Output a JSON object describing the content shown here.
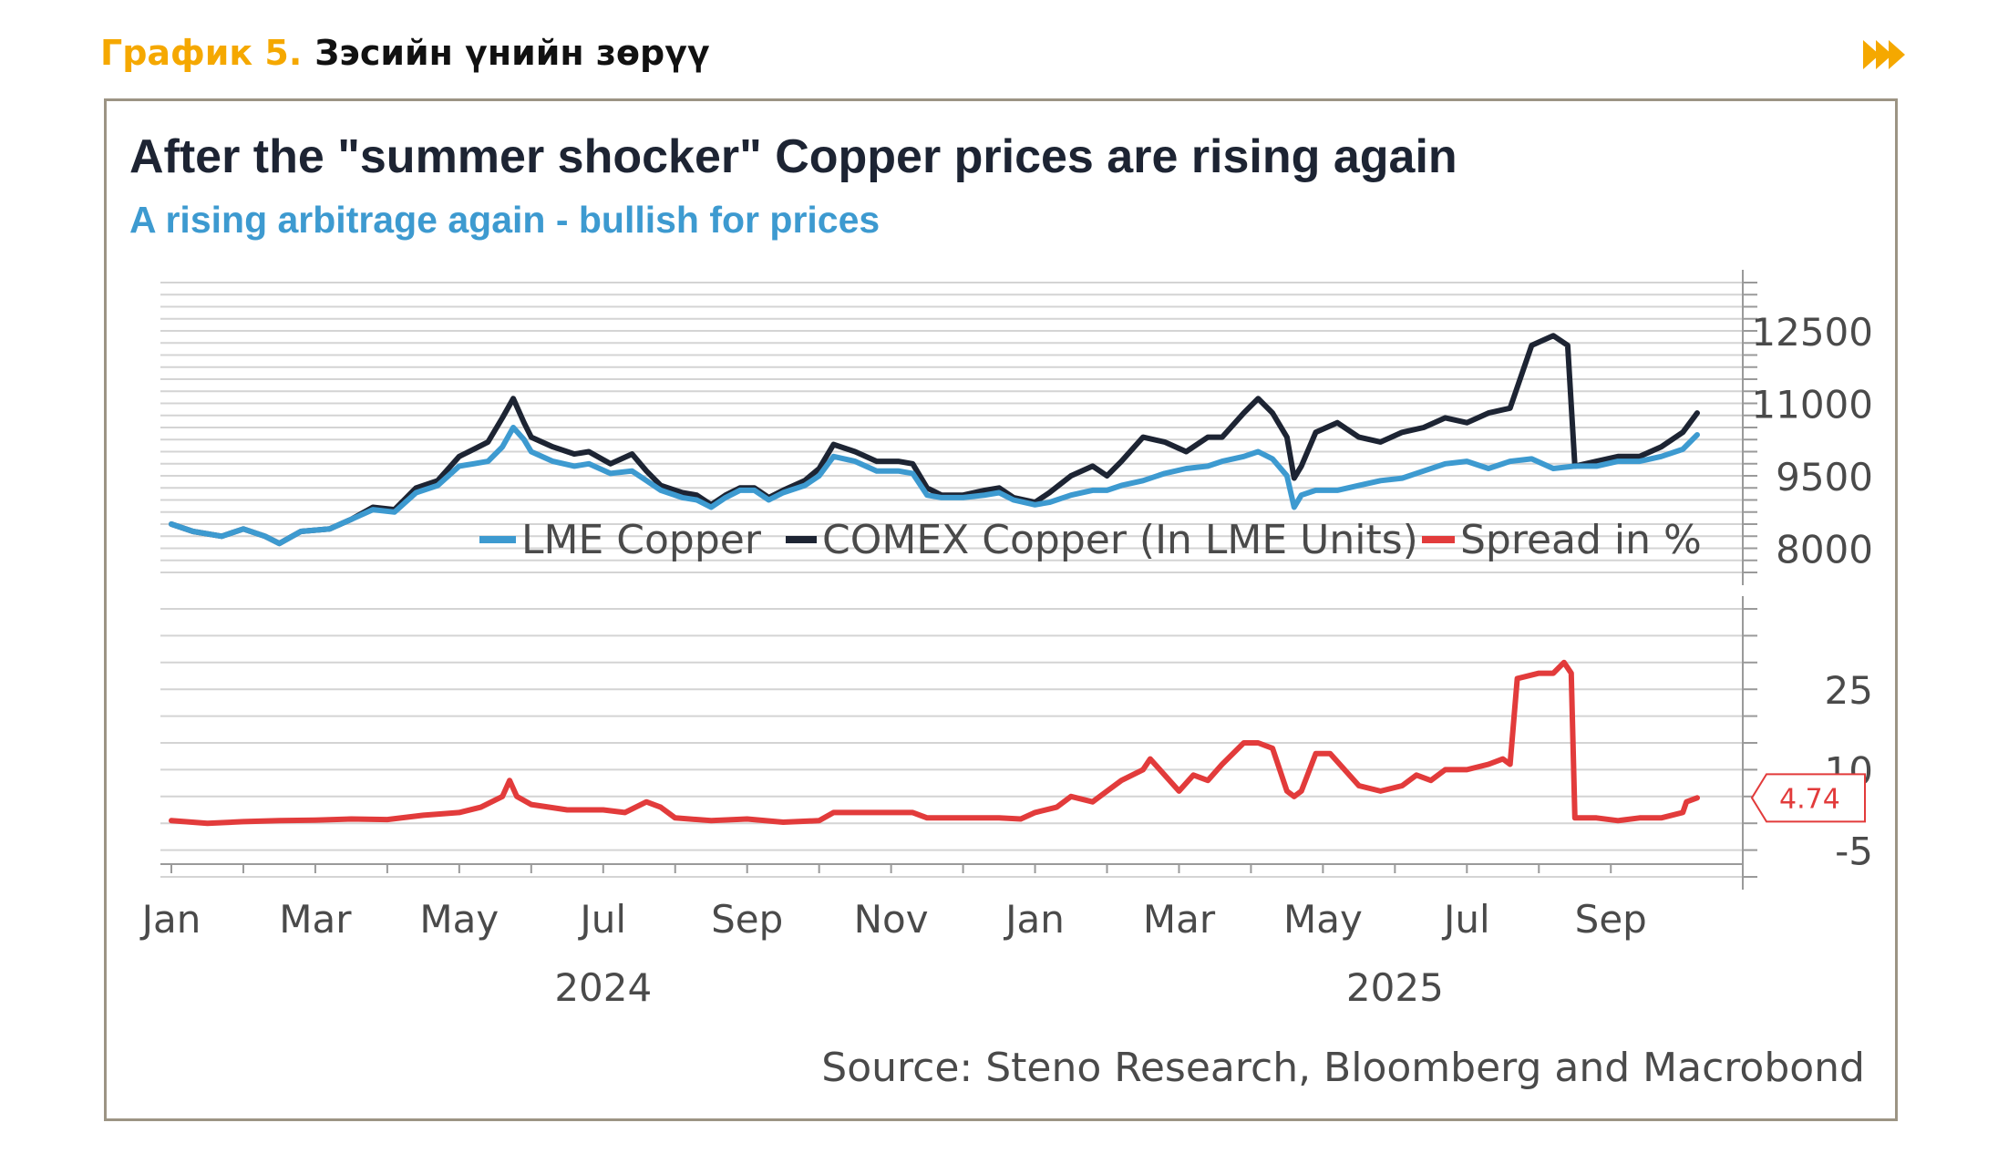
{
  "header": {
    "number": "График 5.",
    "title": "Зэсийн үнийн зөрүү"
  },
  "colors": {
    "accent": "#f5a800",
    "lme": "#3d9ad0",
    "comex": "#1d2433",
    "spread": "#e23b3b",
    "frame": "#9c9484"
  },
  "chart_data": {
    "type": "line",
    "title": "After the \"summer shocker\" Copper prices are rising again",
    "subtitle": "A rising arbitrage again - bullish for prices",
    "source": "Source: Steno Research, Bloomberg and Macrobond",
    "x_labels": [
      "Jan",
      "Mar",
      "May",
      "Jul",
      "Sep",
      "Nov",
      "Jan",
      "Mar",
      "May",
      "Jul",
      "Sep"
    ],
    "x_label_positions": [
      0,
      2,
      4,
      6,
      8,
      10,
      12,
      14,
      16,
      18,
      20
    ],
    "years": [
      {
        "label": "2024",
        "pos": 6
      },
      {
        "label": "2025",
        "pos": 17
      }
    ],
    "x_range": [
      0,
      21.2
    ],
    "top_panel": {
      "yticks": [
        "12500",
        "11000",
        "9500",
        "8000"
      ],
      "ytick_values": [
        12500,
        11000,
        9500,
        8000
      ],
      "ylim": [
        7500,
        13500
      ],
      "legend": [
        "LME Copper",
        "COMEX Copper (In LME Units)",
        "Spread in %"
      ],
      "series": [
        {
          "name": "LME Copper",
          "color": "#3d9ad0",
          "points": [
            [
              0,
              8500
            ],
            [
              0.3,
              8350
            ],
            [
              0.7,
              8250
            ],
            [
              1.0,
              8400
            ],
            [
              1.3,
              8250
            ],
            [
              1.5,
              8100
            ],
            [
              1.8,
              8350
            ],
            [
              2.2,
              8400
            ],
            [
              2.5,
              8600
            ],
            [
              2.8,
              8800
            ],
            [
              3.1,
              8750
            ],
            [
              3.4,
              9150
            ],
            [
              3.7,
              9300
            ],
            [
              4.0,
              9700
            ],
            [
              4.2,
              9750
            ],
            [
              4.4,
              9800
            ],
            [
              4.6,
              10100
            ],
            [
              4.75,
              10500
            ],
            [
              4.9,
              10250
            ],
            [
              5.0,
              10000
            ],
            [
              5.3,
              9800
            ],
            [
              5.6,
              9700
            ],
            [
              5.8,
              9750
            ],
            [
              6.1,
              9550
            ],
            [
              6.4,
              9600
            ],
            [
              6.6,
              9400
            ],
            [
              6.8,
              9200
            ],
            [
              7.1,
              9050
            ],
            [
              7.3,
              9000
            ],
            [
              7.5,
              8850
            ],
            [
              7.7,
              9050
            ],
            [
              7.9,
              9200
            ],
            [
              8.1,
              9200
            ],
            [
              8.3,
              9000
            ],
            [
              8.5,
              9150
            ],
            [
              8.8,
              9300
            ],
            [
              9.0,
              9500
            ],
            [
              9.2,
              9900
            ],
            [
              9.5,
              9800
            ],
            [
              9.8,
              9600
            ],
            [
              10.1,
              9600
            ],
            [
              10.3,
              9550
            ],
            [
              10.5,
              9100
            ],
            [
              10.7,
              9050
            ],
            [
              11.0,
              9050
            ],
            [
              11.3,
              9100
            ],
            [
              11.5,
              9150
            ],
            [
              11.7,
              9000
            ],
            [
              12.0,
              8900
            ],
            [
              12.2,
              8950
            ],
            [
              12.5,
              9100
            ],
            [
              12.8,
              9200
            ],
            [
              13.0,
              9200
            ],
            [
              13.2,
              9300
            ],
            [
              13.5,
              9400
            ],
            [
              13.8,
              9550
            ],
            [
              14.1,
              9650
            ],
            [
              14.4,
              9700
            ],
            [
              14.6,
              9800
            ],
            [
              14.9,
              9900
            ],
            [
              15.1,
              10000
            ],
            [
              15.3,
              9850
            ],
            [
              15.5,
              9500
            ],
            [
              15.6,
              8850
            ],
            [
              15.7,
              9100
            ],
            [
              15.9,
              9200
            ],
            [
              16.2,
              9200
            ],
            [
              16.5,
              9300
            ],
            [
              16.8,
              9400
            ],
            [
              17.1,
              9450
            ],
            [
              17.4,
              9600
            ],
            [
              17.7,
              9750
            ],
            [
              18.0,
              9800
            ],
            [
              18.3,
              9650
            ],
            [
              18.6,
              9800
            ],
            [
              18.9,
              9850
            ],
            [
              19.2,
              9650
            ],
            [
              19.5,
              9700
            ],
            [
              19.8,
              9700
            ],
            [
              20.1,
              9800
            ],
            [
              20.4,
              9800
            ],
            [
              20.7,
              9900
            ],
            [
              21.0,
              10050
            ],
            [
              21.2,
              10350
            ]
          ]
        },
        {
          "name": "COMEX Copper (In LME Units)",
          "color": "#1d2433",
          "points": [
            [
              0,
              8500
            ],
            [
              0.3,
              8350
            ],
            [
              0.7,
              8250
            ],
            [
              1.0,
              8400
            ],
            [
              1.3,
              8250
            ],
            [
              1.5,
              8100
            ],
            [
              1.8,
              8350
            ],
            [
              2.2,
              8400
            ],
            [
              2.5,
              8600
            ],
            [
              2.8,
              8850
            ],
            [
              3.1,
              8800
            ],
            [
              3.4,
              9250
            ],
            [
              3.7,
              9400
            ],
            [
              4.0,
              9900
            ],
            [
              4.2,
              10050
            ],
            [
              4.4,
              10200
            ],
            [
              4.6,
              10700
            ],
            [
              4.75,
              11100
            ],
            [
              4.9,
              10600
            ],
            [
              5.0,
              10300
            ],
            [
              5.3,
              10100
            ],
            [
              5.6,
              9950
            ],
            [
              5.8,
              10000
            ],
            [
              6.1,
              9750
            ],
            [
              6.4,
              9950
            ],
            [
              6.6,
              9600
            ],
            [
              6.8,
              9300
            ],
            [
              7.1,
              9150
            ],
            [
              7.3,
              9100
            ],
            [
              7.5,
              8900
            ],
            [
              7.7,
              9100
            ],
            [
              7.9,
              9250
            ],
            [
              8.1,
              9250
            ],
            [
              8.3,
              9050
            ],
            [
              8.5,
              9200
            ],
            [
              8.8,
              9400
            ],
            [
              9.0,
              9650
            ],
            [
              9.2,
              10150
            ],
            [
              9.5,
              10000
            ],
            [
              9.8,
              9800
            ],
            [
              10.1,
              9800
            ],
            [
              10.3,
              9750
            ],
            [
              10.5,
              9250
            ],
            [
              10.7,
              9100
            ],
            [
              11.0,
              9100
            ],
            [
              11.3,
              9200
            ],
            [
              11.5,
              9250
            ],
            [
              11.7,
              9050
            ],
            [
              12.0,
              8950
            ],
            [
              12.2,
              9150
            ],
            [
              12.5,
              9500
            ],
            [
              12.8,
              9700
            ],
            [
              13.0,
              9500
            ],
            [
              13.2,
              9800
            ],
            [
              13.5,
              10300
            ],
            [
              13.8,
              10200
            ],
            [
              14.1,
              10000
            ],
            [
              14.4,
              10300
            ],
            [
              14.6,
              10300
            ],
            [
              14.9,
              10800
            ],
            [
              15.1,
              11100
            ],
            [
              15.3,
              10800
            ],
            [
              15.5,
              10300
            ],
            [
              15.6,
              9450
            ],
            [
              15.7,
              9700
            ],
            [
              15.9,
              10400
            ],
            [
              16.2,
              10600
            ],
            [
              16.5,
              10300
            ],
            [
              16.8,
              10200
            ],
            [
              17.1,
              10400
            ],
            [
              17.4,
              10500
            ],
            [
              17.7,
              10700
            ],
            [
              18.0,
              10600
            ],
            [
              18.3,
              10800
            ],
            [
              18.6,
              10900
            ],
            [
              18.9,
              12200
            ],
            [
              19.2,
              12400
            ],
            [
              19.4,
              12200
            ],
            [
              19.5,
              9700
            ],
            [
              19.8,
              9800
            ],
            [
              20.1,
              9900
            ],
            [
              20.4,
              9900
            ],
            [
              20.7,
              10100
            ],
            [
              21.0,
              10400
            ],
            [
              21.2,
              10800
            ]
          ]
        }
      ]
    },
    "bottom_panel": {
      "yticks": [
        "25",
        "10",
        "-5"
      ],
      "ytick_values": [
        25,
        10,
        -5
      ],
      "ylim": [
        -10,
        40
      ],
      "last_value_label": "4.74",
      "series": [
        {
          "name": "Spread in %",
          "color": "#e23b3b",
          "points": [
            [
              0,
              0.5
            ],
            [
              0.5,
              0
            ],
            [
              1.0,
              0.3
            ],
            [
              1.5,
              0.5
            ],
            [
              2.0,
              0.6
            ],
            [
              2.5,
              0.8
            ],
            [
              3.0,
              0.7
            ],
            [
              3.5,
              1.5
            ],
            [
              4.0,
              2.0
            ],
            [
              4.3,
              3.0
            ],
            [
              4.6,
              5.0
            ],
            [
              4.7,
              8.0
            ],
            [
              4.8,
              5.0
            ],
            [
              5.0,
              3.5
            ],
            [
              5.5,
              2.5
            ],
            [
              6.0,
              2.5
            ],
            [
              6.3,
              2.0
            ],
            [
              6.6,
              4.0
            ],
            [
              6.8,
              3.0
            ],
            [
              7.0,
              1.0
            ],
            [
              7.5,
              0.5
            ],
            [
              8.0,
              0.8
            ],
            [
              8.5,
              0.2
            ],
            [
              9.0,
              0.5
            ],
            [
              9.2,
              2.0
            ],
            [
              9.5,
              2.0
            ],
            [
              10.0,
              2.0
            ],
            [
              10.3,
              2.0
            ],
            [
              10.5,
              1.0
            ],
            [
              11.0,
              1.0
            ],
            [
              11.5,
              1.0
            ],
            [
              11.8,
              0.8
            ],
            [
              12.0,
              2.0
            ],
            [
              12.3,
              3.0
            ],
            [
              12.5,
              5.0
            ],
            [
              12.8,
              4.0
            ],
            [
              13.0,
              6.0
            ],
            [
              13.2,
              8.0
            ],
            [
              13.5,
              10.0
            ],
            [
              13.6,
              12.0
            ],
            [
              13.8,
              9.0
            ],
            [
              14.0,
              6.0
            ],
            [
              14.2,
              9.0
            ],
            [
              14.4,
              8.0
            ],
            [
              14.6,
              11.0
            ],
            [
              14.9,
              15.0
            ],
            [
              15.1,
              15.0
            ],
            [
              15.3,
              14.0
            ],
            [
              15.5,
              6.0
            ],
            [
              15.6,
              5.0
            ],
            [
              15.7,
              6.0
            ],
            [
              15.9,
              13.0
            ],
            [
              16.1,
              13.0
            ],
            [
              16.3,
              10.0
            ],
            [
              16.5,
              7.0
            ],
            [
              16.8,
              6.0
            ],
            [
              17.1,
              7.0
            ],
            [
              17.3,
              9.0
            ],
            [
              17.5,
              8.0
            ],
            [
              17.7,
              10.0
            ],
            [
              18.0,
              10.0
            ],
            [
              18.3,
              11.0
            ],
            [
              18.5,
              12.0
            ],
            [
              18.6,
              11.0
            ],
            [
              18.7,
              27.0
            ],
            [
              19.0,
              28.0
            ],
            [
              19.2,
              28.0
            ],
            [
              19.35,
              30.0
            ],
            [
              19.45,
              28.0
            ],
            [
              19.5,
              1.0
            ],
            [
              19.8,
              1.0
            ],
            [
              20.1,
              0.5
            ],
            [
              20.4,
              1.0
            ],
            [
              20.7,
              1.0
            ],
            [
              21.0,
              2.0
            ],
            [
              21.05,
              4.0
            ],
            [
              21.2,
              4.74
            ]
          ]
        }
      ]
    }
  }
}
